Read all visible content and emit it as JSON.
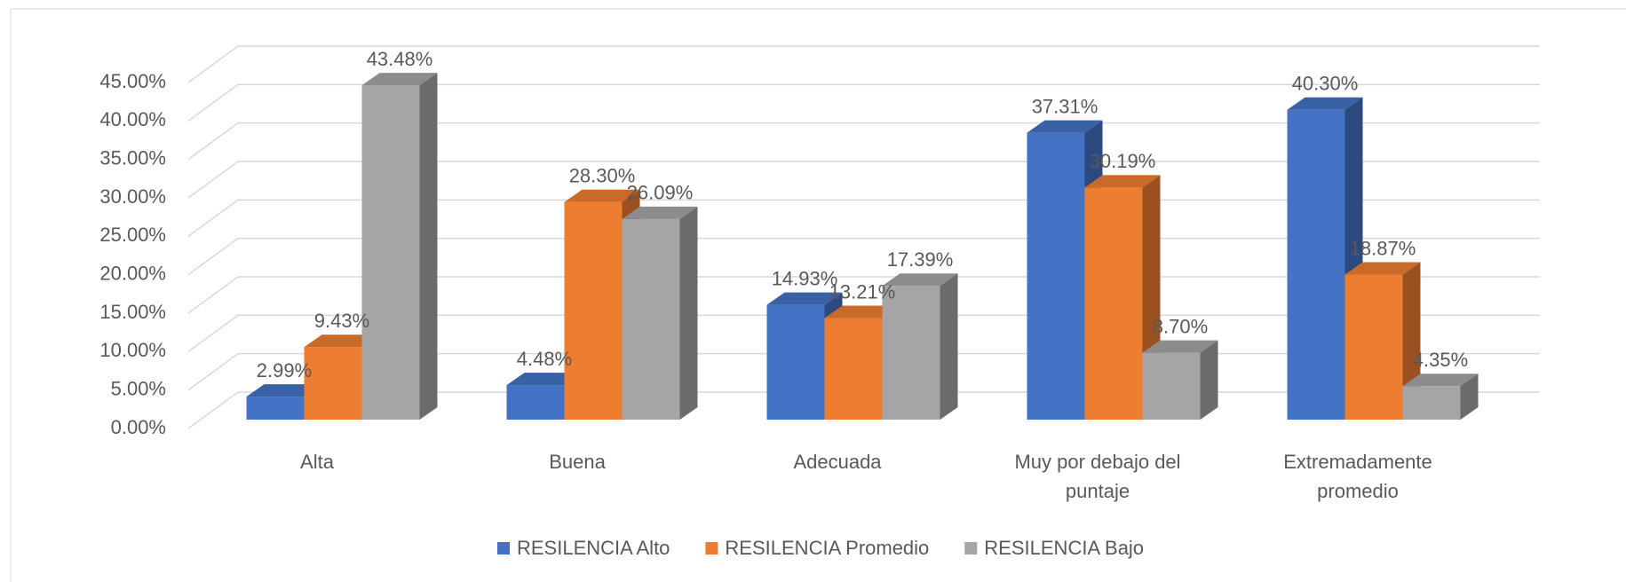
{
  "chart_data": {
    "type": "bar3d",
    "categories": [
      "Alta",
      "Buena",
      "Adecuada",
      "Muy por debajo del puntaje",
      "Extremadamente promedio"
    ],
    "series": [
      {
        "name": "RESILENCIA Alto",
        "color": "#4472c4",
        "values": [
          2.99,
          4.48,
          14.93,
          37.31,
          40.3
        ],
        "value_labels": [
          "2.99%",
          "4.48%",
          "14.93%",
          "37.31%",
          "40.30%"
        ]
      },
      {
        "name": "RESILENCIA Promedio",
        "color": "#ed7d31",
        "values": [
          9.43,
          28.3,
          13.21,
          30.19,
          18.87
        ],
        "value_labels": [
          "9.43%",
          "28.30%",
          "13.21%",
          "30.19%",
          "18.87%"
        ]
      },
      {
        "name": "RESILENCIA Bajo",
        "color": "#a5a5a5",
        "values": [
          43.48,
          26.09,
          17.39,
          8.7,
          4.35
        ],
        "value_labels": [
          "43.48%",
          "26.09%",
          "17.39%",
          "8.70%",
          "4.35%"
        ]
      }
    ],
    "ylim": [
      0,
      45
    ],
    "yticks": [
      {
        "value": 0,
        "label": "0.00%"
      },
      {
        "value": 5,
        "label": "5.00%"
      },
      {
        "value": 10,
        "label": "10.00%"
      },
      {
        "value": 15,
        "label": "15.00%"
      },
      {
        "value": 20,
        "label": "20.00%"
      },
      {
        "value": 25,
        "label": "25.00%"
      },
      {
        "value": 30,
        "label": "30.00%"
      },
      {
        "value": 35,
        "label": "35.00%"
      },
      {
        "value": 40,
        "label": "40.00%"
      },
      {
        "value": 45,
        "label": "45.00%"
      }
    ],
    "grid": true,
    "legend": "bottom"
  }
}
